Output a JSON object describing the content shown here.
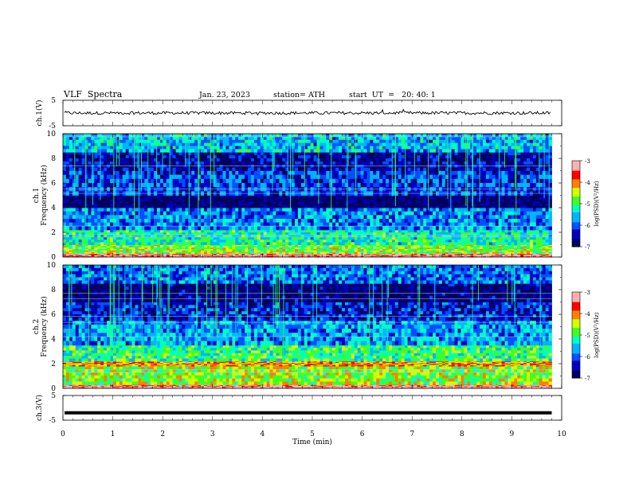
{
  "header": {
    "title": "VLF  Spectra",
    "date": "Jan. 23, 2023",
    "station": "station= ATH",
    "start": "start  UT  =   20: 40: 1"
  },
  "chart_data": [
    {
      "type": "line",
      "name": "ch1-waveform",
      "ylabel": "ch.1(V)",
      "ylim": [
        -5,
        5
      ],
      "yticks": [
        "5",
        "-5"
      ],
      "xlim": [
        0,
        9.8
      ],
      "baseline": 0,
      "noise_amplitude": 0.6
    },
    {
      "type": "heatmap",
      "name": "ch1-spectrogram",
      "ylabel": "ch.1\nFrequency (kHz)",
      "ylim": [
        0,
        10
      ],
      "yticks": [
        "0",
        "2",
        "4",
        "6",
        "8",
        "10"
      ],
      "xlim": [
        0,
        9.8
      ],
      "colorbar": {
        "label": "log(PSD)(V²/Hz)",
        "ticks": [
          "-3",
          "-4",
          "-5",
          "-6",
          "-7"
        ],
        "range": [
          -7,
          -3
        ]
      },
      "bands": [
        {
          "freq": [
            0.0,
            0.3
          ],
          "level": -3.2
        },
        {
          "freq": [
            0.3,
            1.0
          ],
          "level": -4.7
        },
        {
          "freq": [
            1.0,
            2.2
          ],
          "level": -5.2
        },
        {
          "freq": [
            2.2,
            4.0
          ],
          "level": -5.8
        },
        {
          "freq": [
            4.0,
            5.0
          ],
          "level": -6.9
        },
        {
          "freq": [
            5.0,
            7.0
          ],
          "level": -6.1
        },
        {
          "freq": [
            7.0,
            8.5
          ],
          "level": -6.5
        },
        {
          "freq": [
            8.5,
            10.0
          ],
          "level": -5.6
        }
      ]
    },
    {
      "type": "heatmap",
      "name": "ch2-spectrogram",
      "ylabel": "ch.2\nFrequency (kHz)",
      "ylim": [
        0,
        10
      ],
      "yticks": [
        "0",
        "2",
        "4",
        "6",
        "8",
        "10"
      ],
      "xlim": [
        0,
        9.8
      ],
      "colorbar": {
        "label": "log(PSD)(V²/Hz)",
        "ticks": [
          "-3",
          "-4",
          "-5",
          "-6",
          "-7"
        ],
        "range": [
          -7,
          -3
        ]
      },
      "bands": [
        {
          "freq": [
            0.0,
            0.3
          ],
          "level": -3.3
        },
        {
          "freq": [
            0.3,
            1.8
          ],
          "level": -4.6
        },
        {
          "freq": [
            1.8,
            2.2
          ],
          "level": -4.0
        },
        {
          "freq": [
            2.2,
            3.5
          ],
          "level": -5.0
        },
        {
          "freq": [
            3.5,
            5.5
          ],
          "level": -5.7
        },
        {
          "freq": [
            5.5,
            7.0
          ],
          "level": -6.3
        },
        {
          "freq": [
            7.0,
            8.5
          ],
          "level": -6.8
        },
        {
          "freq": [
            8.5,
            10.0
          ],
          "level": -5.9
        }
      ]
    },
    {
      "type": "line",
      "name": "ch3-waveform",
      "ylabel": "ch.3(V)",
      "ylim": [
        -5,
        5
      ],
      "yticks": [
        "5",
        "-5"
      ],
      "xlim": [
        0,
        9.8
      ],
      "baseline": -2
    }
  ],
  "x_axis": {
    "label": "Time  (min)",
    "range": [
      0,
      10
    ],
    "ticks": [
      "0",
      "1",
      "2",
      "3",
      "4",
      "5",
      "6",
      "7",
      "8",
      "9",
      "10"
    ]
  },
  "colors": {
    "colormap": [
      "#000060",
      "#0000c0",
      "#0050ff",
      "#00b4ff",
      "#00ffc0",
      "#40ff20",
      "#d0ff00",
      "#ff8000",
      "#ff0000",
      "#ffb0b0"
    ],
    "line": "#000000"
  }
}
